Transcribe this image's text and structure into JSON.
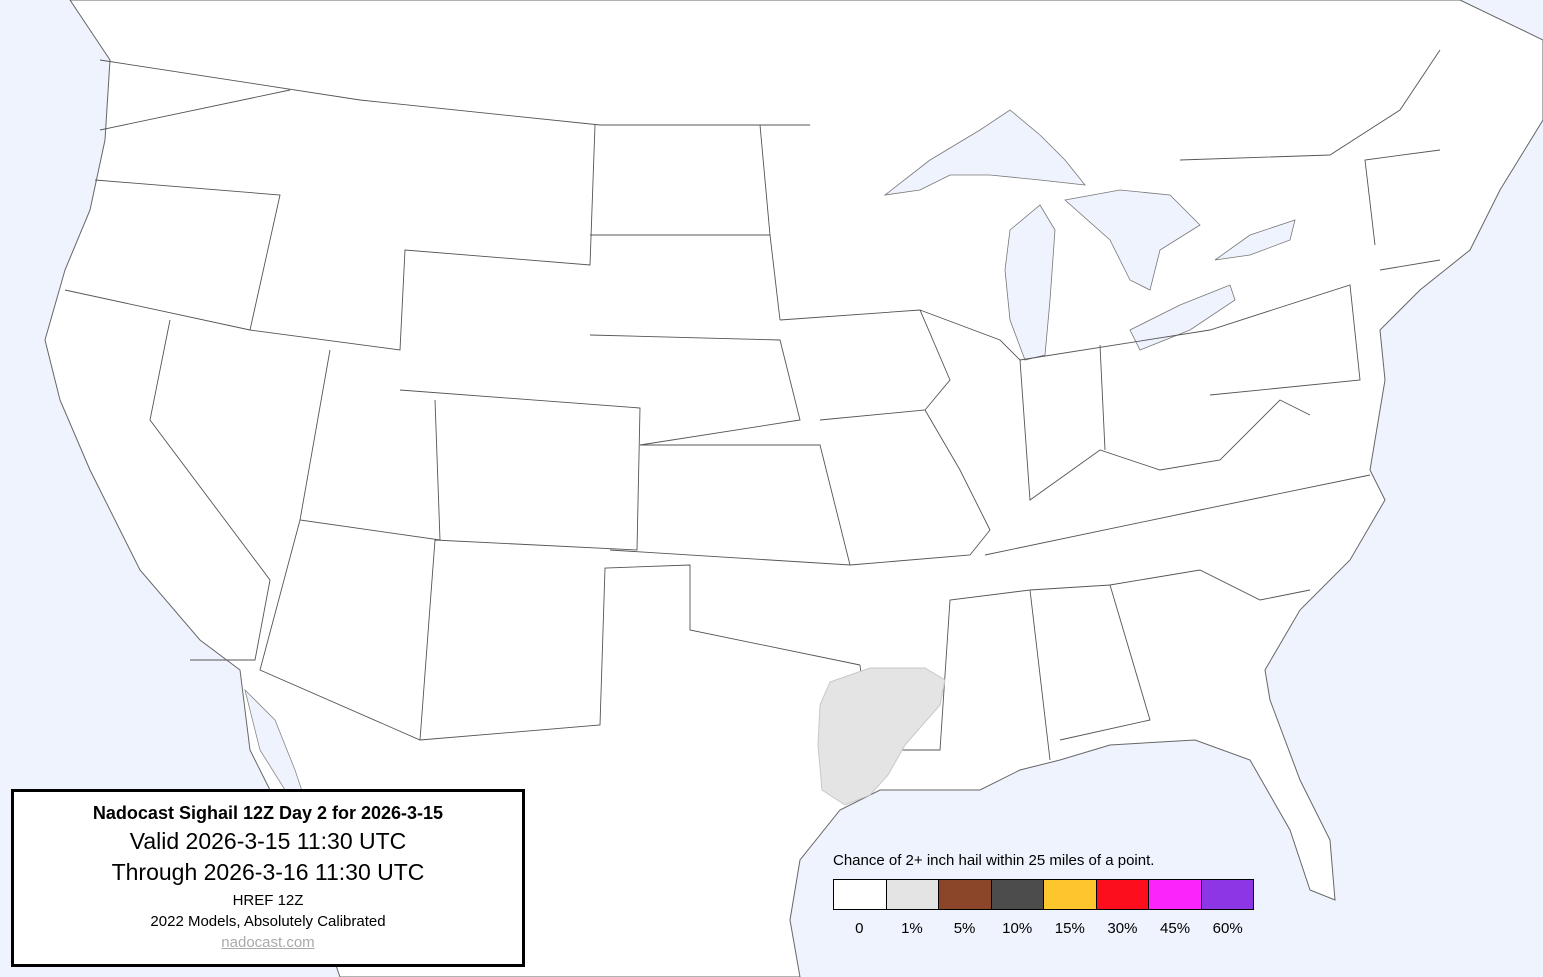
{
  "info_box": {
    "title": "Nadocast Sighail 12Z Day 2 for 2026-3-15",
    "valid": "Valid 2026-3-15 11:30 UTC",
    "through": "Through 2026-3-16 11:30 UTC",
    "model": "HREF 12Z",
    "calibration": "2022 Models, Absolutely Calibrated",
    "link": "nadocast.com"
  },
  "legend": {
    "title": "Chance of 2+ inch hail within 25 miles of a point.",
    "bins": [
      {
        "label": "0",
        "color": "#ffffff"
      },
      {
        "label": "1%",
        "color": "#e4e4e4"
      },
      {
        "label": "5%",
        "color": "#8b462a"
      },
      {
        "label": "10%",
        "color": "#4b4c4b"
      },
      {
        "label": "15%",
        "color": "#fdc62d"
      },
      {
        "label": "30%",
        "color": "#fd0e1d"
      },
      {
        "label": "45%",
        "color": "#fb24fb"
      },
      {
        "label": "60%",
        "color": "#8c36e6"
      }
    ]
  },
  "colors": {
    "water": "#eef3fd",
    "land": "#ffffff",
    "border": "#555555"
  },
  "forecast_areas": [
    {
      "region": "East Texas / Western Louisiana",
      "probability": "1%"
    }
  ]
}
